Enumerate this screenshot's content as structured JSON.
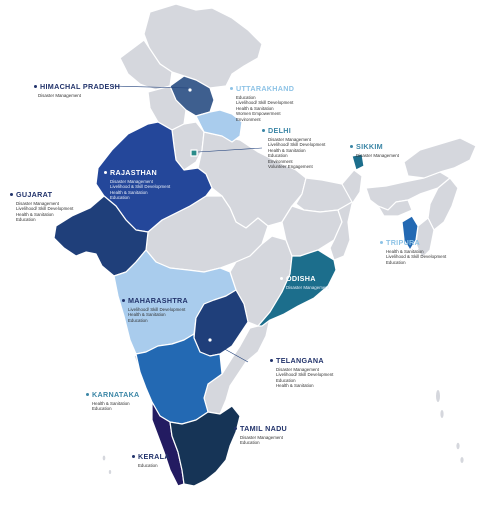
{
  "colors": {
    "base_state": "#d5d7dd",
    "border": "#ffffff",
    "dark_navy": "#1f3f7a",
    "royal_blue": "#24479a",
    "mid_blue": "#2369b3",
    "light_blue": "#a9cced",
    "teal": "#1c6e8c",
    "slate_blue": "#3e5f8f",
    "deep_indigo": "#231b61",
    "darkest_navy": "#163456"
  },
  "states": [
    {
      "name": "HIMACHAL PRADESH",
      "items": [
        "Disaster Management"
      ]
    },
    {
      "name": "UTTARAKHAND",
      "items": [
        "Education",
        "Livelihood/ Skill Development",
        "Health & Sanitation",
        "Women Empowerment",
        "Environment"
      ]
    },
    {
      "name": "DELHI",
      "items": [
        "Disaster Management",
        "Livelihood/ Skill Development",
        "Health & Sanitation",
        "Education",
        "Environment",
        "Volunteer Engagement"
      ]
    },
    {
      "name": "SIKKIM",
      "items": [
        "Disaster Management"
      ]
    },
    {
      "name": "RAJASTHAN",
      "items": [
        "Disaster Management",
        "Livelihood & Skill Development",
        "Health & Sanitation",
        "Education"
      ]
    },
    {
      "name": "GUJARAT",
      "items": [
        "Disaster Management",
        "Livelihood/ Skill Development",
        "Health & Sanitation",
        "Education"
      ]
    },
    {
      "name": "TRIPURA",
      "items": [
        "Health & Sanitation",
        "Livelihood & Skill Development",
        "Education"
      ]
    },
    {
      "name": "ODISHA",
      "items": [
        "Disaster Management"
      ]
    },
    {
      "name": "MAHARASHTRA",
      "items": [
        "Livelihood/ Skill Development",
        "Health & Sanitation",
        "Education"
      ]
    },
    {
      "name": "TELANGANA",
      "items": [
        "Disaster Management",
        "Livelihood/ Skill Development",
        "Education",
        "Health & Sanitation"
      ]
    },
    {
      "name": "KARNATAKA",
      "items": [
        "Health & Sanitation",
        "Education"
      ]
    },
    {
      "name": "TAMIL NADU",
      "items": [
        "Disaster Management",
        "Education"
      ]
    },
    {
      "name": "KERALA",
      "items": [
        "Education"
      ]
    }
  ]
}
